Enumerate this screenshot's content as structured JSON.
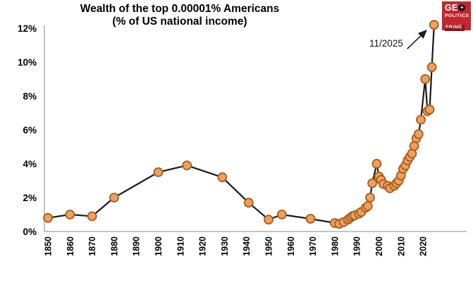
{
  "logo": {
    "ge": "GE",
    "globe_glyph": "+",
    "politics": "POLITICS",
    "prime": "PRIME",
    "bg_color": "#c1272d",
    "prime_bg": "#8f161c"
  },
  "chart_data": {
    "type": "line",
    "title": "Wealth of the top 0.00001% Americans",
    "subtitle": "(% of US national income)",
    "xlabel": "",
    "ylabel": "",
    "ylim": [
      0,
      12
    ],
    "y_ticks": [
      0,
      2,
      4,
      6,
      8,
      10,
      12
    ],
    "y_tick_suffix": "%",
    "x_ticks": [
      1850,
      1860,
      1870,
      1880,
      1890,
      1900,
      1910,
      1920,
      1930,
      1940,
      1950,
      1960,
      1970,
      1980,
      1990,
      2000,
      2010,
      2020
    ],
    "grid": false,
    "legend": null,
    "line_color": "#1a1a1a",
    "marker_fill": "#efa05c",
    "marker_stroke": "#a55e1e",
    "axis_color": "#c2c2c2",
    "annotation": {
      "label": "11/2025",
      "target_year": 2025,
      "target_value": 12.2
    },
    "points": [
      [
        1850,
        0.8
      ],
      [
        1860,
        1.0
      ],
      [
        1870,
        0.9
      ],
      [
        1880,
        2.0
      ],
      [
        1900,
        3.5
      ],
      [
        1913,
        3.9
      ],
      [
        1929,
        3.2
      ],
      [
        1941,
        1.7
      ],
      [
        1950,
        0.7
      ],
      [
        1956,
        1.0
      ],
      [
        1969,
        0.75
      ],
      [
        1980,
        0.5
      ],
      [
        1982,
        0.45
      ],
      [
        1984,
        0.55
      ],
      [
        1986,
        0.7
      ],
      [
        1987,
        0.8
      ],
      [
        1988,
        0.9
      ],
      [
        1989,
        0.95
      ],
      [
        1991,
        1.05
      ],
      [
        1992,
        1.15
      ],
      [
        1994,
        1.4
      ],
      [
        1995,
        1.5
      ],
      [
        1996,
        2.0
      ],
      [
        1997,
        2.85
      ],
      [
        1999,
        4.0
      ],
      [
        2000,
        3.25
      ],
      [
        2001,
        3.05
      ],
      [
        2002,
        2.8
      ],
      [
        2004,
        2.7
      ],
      [
        2005,
        2.55
      ],
      [
        2007,
        2.7
      ],
      [
        2008,
        2.85
      ],
      [
        2009,
        3.0
      ],
      [
        2010,
        3.3
      ],
      [
        2011,
        3.7
      ],
      [
        2012,
        3.9
      ],
      [
        2013,
        4.2
      ],
      [
        2014,
        4.4
      ],
      [
        2015,
        4.6
      ],
      [
        2016,
        5.05
      ],
      [
        2017,
        5.5
      ],
      [
        2018,
        5.75
      ],
      [
        2019,
        6.6
      ],
      [
        2021,
        9.0
      ],
      [
        2022,
        7.1
      ],
      [
        2023,
        7.2
      ],
      [
        2024,
        9.7
      ],
      [
        2025,
        12.2
      ]
    ]
  }
}
